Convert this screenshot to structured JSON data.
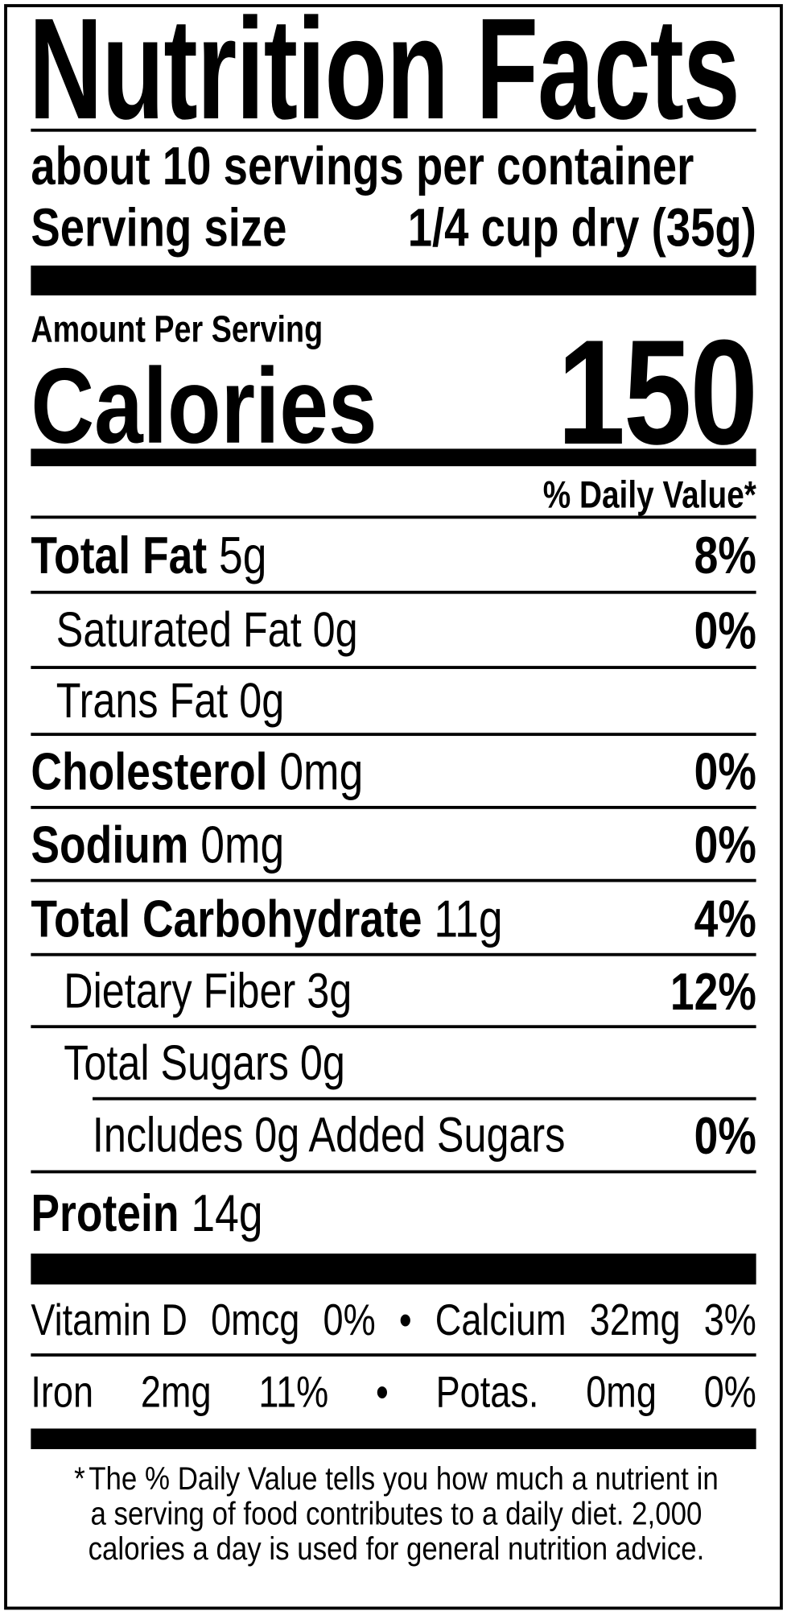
{
  "title": "Nutrition Facts",
  "servings_per_container": "about 10 servings per container",
  "serving_size": {
    "label": "Serving size",
    "value": "1/4 cup dry (35g)"
  },
  "amount_per_serving": "Amount Per Serving",
  "calories": {
    "label": "Calories",
    "value": "150"
  },
  "daily_value_header": "% Daily Value*",
  "nutrients": [
    {
      "name": "Total Fat",
      "amount": "5g",
      "dv": "8%"
    },
    {
      "name": "Saturated Fat",
      "amount": "0g",
      "dv": "0%"
    },
    {
      "name": "Trans Fat",
      "amount": "0g",
      "dv": ""
    },
    {
      "name": "Cholesterol",
      "amount": "0mg",
      "dv": "0%"
    },
    {
      "name": "Sodium",
      "amount": "0mg",
      "dv": "0%"
    },
    {
      "name": "Total Carbohydrate",
      "amount": "11g",
      "dv": "4%"
    },
    {
      "name": "Dietary Fiber",
      "amount": "3g",
      "dv": "12%"
    },
    {
      "name": "Total Sugars",
      "amount": "0g",
      "dv": ""
    },
    {
      "name": "Includes 0g Added Sugars",
      "amount": "",
      "dv": "0%"
    },
    {
      "name": "Protein",
      "amount": "14g",
      "dv": ""
    }
  ],
  "vitamins": [
    {
      "items": [
        "Vitamin D",
        "0mcg",
        "0%",
        "•",
        "Calcium",
        "32mg",
        "3%"
      ]
    },
    {
      "items": [
        "Iron",
        "2mg",
        "11%",
        "•",
        "Potas.",
        "0mg",
        "0%"
      ]
    }
  ],
  "footnote": {
    "star": "*",
    "lines": [
      "The % Daily Value tells you how much a nutrient in",
      "a serving of food contributes to a daily diet. 2,000",
      "calories a day is used for general nutrition advice."
    ]
  }
}
